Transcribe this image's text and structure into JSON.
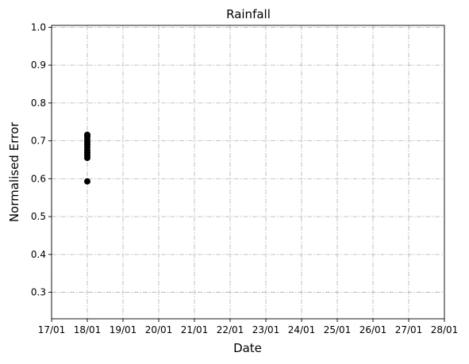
{
  "chart_data": {
    "type": "scatter",
    "title": "Rainfall",
    "xlabel": "Date",
    "ylabel": "Normalised Error",
    "x_ticks": [
      "17/01",
      "18/01",
      "19/01",
      "20/01",
      "21/01",
      "22/01",
      "23/01",
      "24/01",
      "25/01",
      "26/01",
      "27/01",
      "28/01"
    ],
    "y_ticks": [
      "0.3",
      "0.4",
      "0.5",
      "0.6",
      "0.7",
      "0.8",
      "0.9",
      "1.0"
    ],
    "xlim": [
      "17/01",
      "28/01"
    ],
    "ylim": [
      0.23,
      1.005
    ],
    "grid": true,
    "points": [
      {
        "x": "18/01",
        "y": 0.593
      },
      {
        "x": "18/01",
        "y": 0.655
      },
      {
        "x": "18/01",
        "y": 0.662
      },
      {
        "x": "18/01",
        "y": 0.668
      },
      {
        "x": "18/01",
        "y": 0.675
      },
      {
        "x": "18/01",
        "y": 0.683
      },
      {
        "x": "18/01",
        "y": 0.69
      },
      {
        "x": "18/01",
        "y": 0.697
      },
      {
        "x": "18/01",
        "y": 0.705
      },
      {
        "x": "18/01",
        "y": 0.712
      },
      {
        "x": "18/01",
        "y": 0.716
      }
    ]
  }
}
